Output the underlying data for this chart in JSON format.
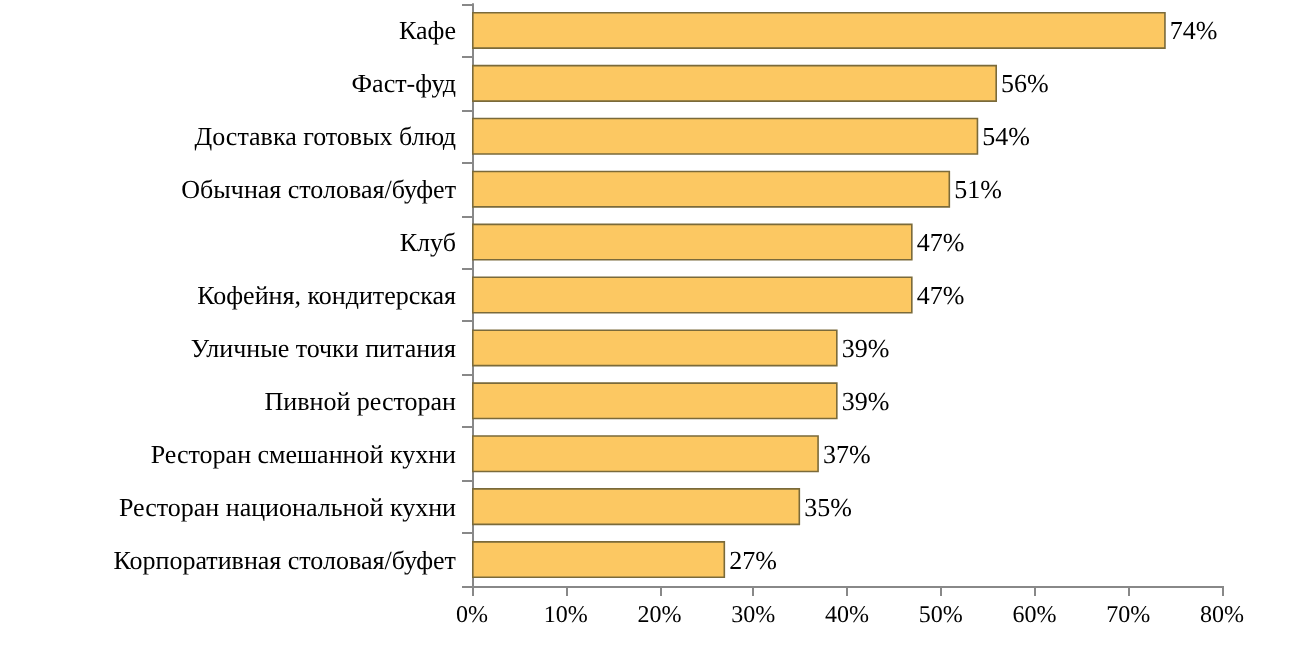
{
  "chart_data": {
    "type": "bar",
    "orientation": "horizontal",
    "categories": [
      "Кафе",
      "Фаст-фуд",
      "Доставка готовых блюд",
      "Обычная столовая/буфет",
      "Клуб",
      "Кофейня, кондитерская",
      "Уличные точки питания",
      "Пивной ресторан",
      "Ресторан смешанной кухни",
      "Ресторан национальной кухни",
      "Корпоративная столовая/буфет"
    ],
    "values": [
      74,
      56,
      54,
      51,
      47,
      47,
      39,
      39,
      37,
      35,
      27
    ],
    "value_labels": [
      "74%",
      "56%",
      "54%",
      "51%",
      "47%",
      "47%",
      "39%",
      "39%",
      "37%",
      "35%",
      "27%"
    ],
    "color": "#fcc862",
    "xlim": [
      0,
      80
    ],
    "xticks": [
      {
        "value": 0,
        "label": "0%"
      },
      {
        "value": 10,
        "label": "10%"
      },
      {
        "value": 20,
        "label": "20%"
      },
      {
        "value": 30,
        "label": "30%"
      },
      {
        "value": 40,
        "label": "40%"
      },
      {
        "value": 50,
        "label": "50%"
      },
      {
        "value": 60,
        "label": "60%"
      },
      {
        "value": 70,
        "label": "70%"
      },
      {
        "value": 80,
        "label": "80%"
      }
    ],
    "grid": false
  }
}
